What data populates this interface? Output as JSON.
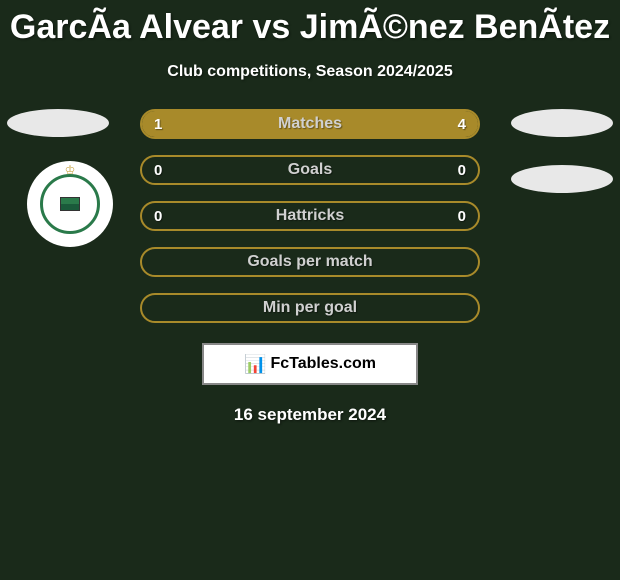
{
  "title": "GarcÃ­a Alvear vs JimÃ©nez BenÃ­tez",
  "subtitle": "Club competitions, Season 2024/2025",
  "colors": {
    "background": "#1a2a1a",
    "accent": "#a88a2a",
    "text": "#ffffff",
    "label": "#d0d0d0",
    "badge_bg": "#e8e8e8",
    "club_green": "#2a7a4a"
  },
  "stats": [
    {
      "label": "Matches",
      "left_value": "1",
      "right_value": "4",
      "left_fill_pct": 20,
      "right_fill_pct": 80
    },
    {
      "label": "Goals",
      "left_value": "0",
      "right_value": "0",
      "left_fill_pct": 0,
      "right_fill_pct": 0
    },
    {
      "label": "Hattricks",
      "left_value": "0",
      "right_value": "0",
      "left_fill_pct": 0,
      "right_fill_pct": 0
    },
    {
      "label": "Goals per match",
      "left_value": "",
      "right_value": "",
      "left_fill_pct": 0,
      "right_fill_pct": 0
    },
    {
      "label": "Min per goal",
      "left_value": "",
      "right_value": "",
      "left_fill_pct": 0,
      "right_fill_pct": 0
    }
  ],
  "footer_logo": "FcTables.com",
  "footer_date": "16 september 2024",
  "club_badge_text": "RACING CLUB SANTANDER"
}
